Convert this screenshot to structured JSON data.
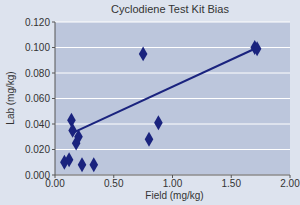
{
  "chart_data": {
    "type": "scatter",
    "title": "Cyclodiene Test Kit Bias",
    "x_label": "Field (mg/kg)",
    "y_label": "Lab (mg/kg)",
    "xlim": [
      0,
      2
    ],
    "xticks": [
      {
        "value": 0,
        "label": "0.00"
      },
      {
        "value": 0.5,
        "label": "0.50"
      },
      {
        "value": 1,
        "label": "1.00"
      },
      {
        "value": 1.5,
        "label": "1.50"
      },
      {
        "value": 2,
        "label": "2.00"
      }
    ],
    "ylim": [
      0,
      0.12
    ],
    "yticks": [
      {
        "value": 0,
        "label": "0.000"
      },
      {
        "value": 0.02,
        "label": "0.020"
      },
      {
        "value": 0.04,
        "label": "0.040"
      },
      {
        "value": 0.06,
        "label": "0.060"
      },
      {
        "value": 0.08,
        "label": "0.080"
      },
      {
        "value": 0.1,
        "label": "0.100"
      },
      {
        "value": 0.12,
        "label": "0.120"
      }
    ],
    "grid": true,
    "series": [
      {
        "type": "scatter",
        "marker": "diamond",
        "color": "#1a237e",
        "x": [
          0.08,
          0.12,
          0.14,
          0.15,
          0.18,
          0.2,
          0.23,
          0.33,
          0.75,
          0.8,
          0.88,
          1.7,
          1.72
        ],
        "values": [
          0.01,
          0.012,
          0.043,
          0.035,
          0.025,
          0.03,
          0.008,
          0.008,
          0.095,
          0.028,
          0.041,
          0.1,
          0.099
        ]
      },
      {
        "type": "line",
        "color": "#1a237e",
        "line_style": "solid",
        "x": [
          0.15,
          1.7
        ],
        "values": [
          0.033,
          0.099
        ]
      }
    ]
  }
}
